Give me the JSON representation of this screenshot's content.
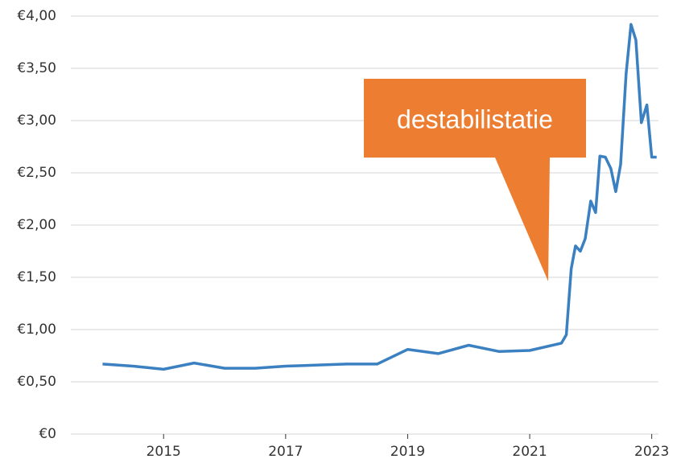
{
  "chart_data": {
    "type": "line",
    "annotation": "destabilistatie",
    "x": [
      2014.0,
      2014.5,
      2015.0,
      2015.5,
      2016.0,
      2016.5,
      2017.0,
      2018.0,
      2018.5,
      2019.0,
      2019.5,
      2020.0,
      2020.5,
      2021.0,
      2021.52,
      2021.6,
      2021.68,
      2021.75,
      2021.83,
      2021.91,
      2022.0,
      2022.08,
      2022.15,
      2022.24,
      2022.33,
      2022.41,
      2022.49,
      2022.58,
      2022.66,
      2022.74,
      2022.83,
      2022.92,
      2023.0,
      2023.08
    ],
    "series": [
      {
        "color": "#3b80c0",
        "values": [
          0.67,
          0.65,
          0.62,
          0.68,
          0.63,
          0.63,
          0.65,
          0.67,
          0.67,
          0.81,
          0.77,
          0.85,
          0.79,
          0.8,
          0.87,
          0.95,
          1.58,
          1.8,
          1.75,
          1.87,
          2.23,
          2.12,
          2.66,
          2.65,
          2.54,
          2.32,
          2.58,
          3.45,
          3.92,
          3.77,
          2.98,
          3.15,
          2.65,
          2.65
        ]
      }
    ],
    "xlim": [
      2013.48,
      2023.11
    ],
    "xticks": [
      2015,
      2017,
      2019,
      2021,
      2023
    ],
    "ylim": [
      0,
      4
    ],
    "yticks": [
      {
        "value": 0,
        "label": "€0"
      },
      {
        "value": 0.5,
        "label": "€0,50"
      },
      {
        "value": 1,
        "label": "€1,00"
      },
      {
        "value": 1.5,
        "label": "€1,50"
      },
      {
        "value": 2,
        "label": "€2,00"
      },
      {
        "value": 2.5,
        "label": "€2,50"
      },
      {
        "value": 3,
        "label": "€3,00"
      },
      {
        "value": 3.5,
        "label": "€3,50"
      },
      {
        "value": 4,
        "label": "€4,00"
      }
    ],
    "grid": true
  }
}
